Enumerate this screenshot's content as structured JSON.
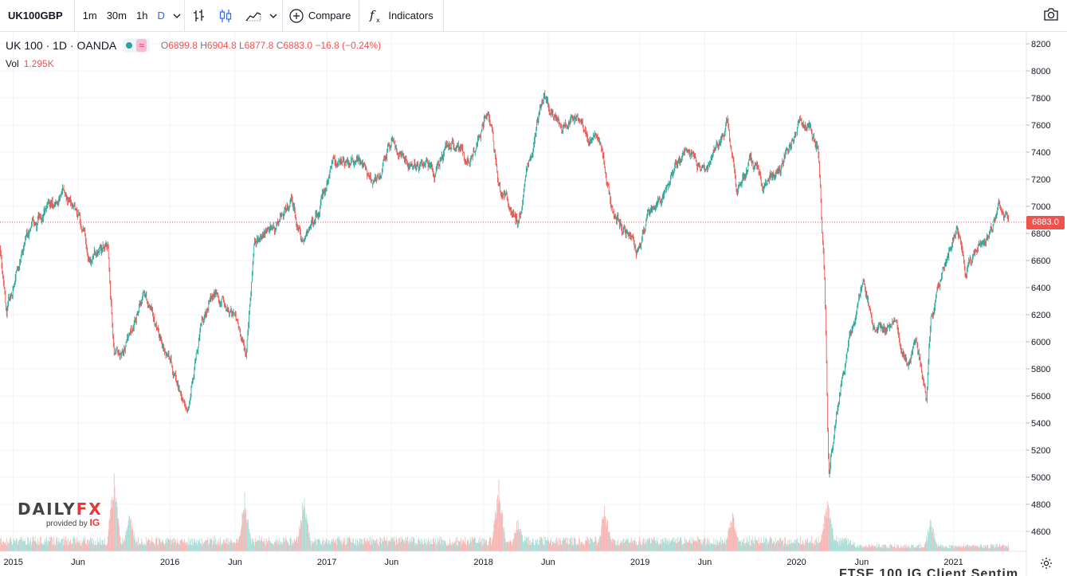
{
  "toolbar": {
    "symbol": "UK100GBP",
    "timeframes": [
      "1m",
      "30m",
      "1h",
      "D"
    ],
    "active_timeframe": "D",
    "compare_label": "Compare",
    "indicators_label": "Indicators"
  },
  "legend": {
    "title": "UK 100 · 1D · OANDA",
    "wave_symbol": "≈",
    "open_label": "O",
    "open": "6899.8",
    "high_label": "H",
    "high": "6904.8",
    "low_label": "L",
    "low": "6877.8",
    "close_label": "C",
    "close": "6883.0",
    "change": "−16.8 (−0.24%)",
    "vol_label": "Vol",
    "vol_value": "1.295K"
  },
  "logo": {
    "word_a": "DAILY",
    "word_b": "FX",
    "provided_by": "provided by",
    "ig": "IG"
  },
  "bottom_text": "FTSE 100 IG Client Sentim",
  "colors": {
    "up": "#26a69a",
    "down": "#ef5350",
    "volume_up": "#a6dcd6",
    "volume_down": "#f7b3b1",
    "accent": "#2962ff"
  },
  "chart_data": {
    "type": "candlestick",
    "symbol": "UK 100",
    "interval": "1D",
    "ylim": [
      4450,
      8250
    ],
    "y_ticks": [
      4600,
      4800,
      5000,
      5200,
      5400,
      5600,
      5800,
      6000,
      6200,
      6400,
      6600,
      6800,
      7000,
      7200,
      7400,
      7600,
      7800,
      8000,
      8200
    ],
    "x_ticks": [
      {
        "label": "2015",
        "date": "2015-01-01"
      },
      {
        "label": "Jun",
        "date": "2015-06-01"
      },
      {
        "label": "2016",
        "date": "2016-01-01"
      },
      {
        "label": "Jun",
        "date": "2016-06-01"
      },
      {
        "label": "2017",
        "date": "2017-01-01"
      },
      {
        "label": "Jun",
        "date": "2017-06-01"
      },
      {
        "label": "2018",
        "date": "2018-01-01"
      },
      {
        "label": "Jun",
        "date": "2018-06-01"
      },
      {
        "label": "2019",
        "date": "2019-01-01"
      },
      {
        "label": "Jun",
        "date": "2019-06-01"
      },
      {
        "label": "2020",
        "date": "2020-01-01"
      },
      {
        "label": "Jun",
        "date": "2020-06-01"
      },
      {
        "label": "2021",
        "date": "2021-01-01"
      }
    ],
    "x_range": [
      "2014-12-01",
      "2021-05-10"
    ],
    "last_price": 6883.0,
    "last_price_label": "6883.0",
    "close_path": [
      {
        "date": "2014-12-01",
        "close": 6700
      },
      {
        "date": "2014-12-16",
        "close": 6200
      },
      {
        "date": "2015-01-05",
        "close": 6500
      },
      {
        "date": "2015-02-20",
        "close": 6900
      },
      {
        "date": "2015-04-27",
        "close": 7100
      },
      {
        "date": "2015-06-01",
        "close": 6950
      },
      {
        "date": "2015-07-01",
        "close": 6600
      },
      {
        "date": "2015-08-10",
        "close": 6700
      },
      {
        "date": "2015-08-24",
        "close": 5900
      },
      {
        "date": "2015-09-29",
        "close": 6000
      },
      {
        "date": "2015-11-02",
        "close": 6400
      },
      {
        "date": "2015-12-14",
        "close": 5950
      },
      {
        "date": "2016-01-20",
        "close": 5700
      },
      {
        "date": "2016-02-11",
        "close": 5550
      },
      {
        "date": "2016-03-15",
        "close": 6150
      },
      {
        "date": "2016-04-20",
        "close": 6400
      },
      {
        "date": "2016-06-01",
        "close": 6200
      },
      {
        "date": "2016-06-27",
        "close": 5900
      },
      {
        "date": "2016-07-15",
        "close": 6700
      },
      {
        "date": "2016-09-01",
        "close": 6850
      },
      {
        "date": "2016-10-11",
        "close": 7050
      },
      {
        "date": "2016-11-09",
        "close": 6700
      },
      {
        "date": "2016-12-15",
        "close": 7000
      },
      {
        "date": "2017-01-13",
        "close": 7300
      },
      {
        "date": "2017-03-01",
        "close": 7350
      },
      {
        "date": "2017-04-18",
        "close": 7150
      },
      {
        "date": "2017-06-01",
        "close": 7500
      },
      {
        "date": "2017-07-01",
        "close": 7350
      },
      {
        "date": "2017-09-15",
        "close": 7250
      },
      {
        "date": "2017-10-20",
        "close": 7500
      },
      {
        "date": "2017-12-01",
        "close": 7350
      },
      {
        "date": "2018-01-12",
        "close": 7750
      },
      {
        "date": "2018-02-09",
        "close": 7100
      },
      {
        "date": "2018-03-23",
        "close": 6900
      },
      {
        "date": "2018-04-20",
        "close": 7350
      },
      {
        "date": "2018-05-22",
        "close": 7850
      },
      {
        "date": "2018-07-02",
        "close": 7550
      },
      {
        "date": "2018-08-01",
        "close": 7700
      },
      {
        "date": "2018-10-01",
        "close": 7450
      },
      {
        "date": "2018-10-26",
        "close": 7000
      },
      {
        "date": "2018-12-27",
        "close": 6650
      },
      {
        "date": "2019-01-15",
        "close": 6900
      },
      {
        "date": "2019-03-01",
        "close": 7150
      },
      {
        "date": "2019-04-23",
        "close": 7450
      },
      {
        "date": "2019-06-01",
        "close": 7250
      },
      {
        "date": "2019-07-25",
        "close": 7650
      },
      {
        "date": "2019-08-15",
        "close": 7100
      },
      {
        "date": "2019-09-15",
        "close": 7350
      },
      {
        "date": "2019-10-14",
        "close": 7150
      },
      {
        "date": "2019-12-01",
        "close": 7300
      },
      {
        "date": "2020-01-10",
        "close": 7650
      },
      {
        "date": "2020-02-20",
        "close": 7450
      },
      {
        "date": "2020-03-06",
        "close": 6500
      },
      {
        "date": "2020-03-16",
        "close": 5000
      },
      {
        "date": "2020-03-23",
        "close": 5200
      },
      {
        "date": "2020-04-15",
        "close": 5750
      },
      {
        "date": "2020-06-05",
        "close": 6450
      },
      {
        "date": "2020-06-26",
        "close": 6150
      },
      {
        "date": "2020-08-15",
        "close": 6100
      },
      {
        "date": "2020-09-21",
        "close": 5850
      },
      {
        "date": "2020-10-05",
        "close": 6000
      },
      {
        "date": "2020-10-30",
        "close": 5600
      },
      {
        "date": "2020-11-09",
        "close": 6200
      },
      {
        "date": "2020-12-01",
        "close": 6450
      },
      {
        "date": "2021-01-08",
        "close": 6850
      },
      {
        "date": "2021-01-29",
        "close": 6500
      },
      {
        "date": "2021-02-25",
        "close": 6700
      },
      {
        "date": "2021-03-15",
        "close": 6750
      },
      {
        "date": "2021-04-16",
        "close": 6950
      },
      {
        "date": "2021-05-04",
        "close": 6883
      }
    ],
    "volume_ylim": [
      0,
      8000
    ],
    "volume_baseline": 600,
    "volume_spikes": [
      {
        "date": "2015-08-24",
        "volume": 4900
      },
      {
        "date": "2015-09-30",
        "volume": 2400
      },
      {
        "date": "2016-06-24",
        "volume": 3600
      },
      {
        "date": "2016-11-09",
        "volume": 3700
      },
      {
        "date": "2018-02-06",
        "volume": 4400
      },
      {
        "date": "2018-03-23",
        "volume": 2100
      },
      {
        "date": "2018-10-11",
        "volume": 3000
      },
      {
        "date": "2019-08-05",
        "volume": 2700
      },
      {
        "date": "2020-03-12",
        "volume": 3300
      },
      {
        "date": "2020-03-16",
        "volume": 2800
      },
      {
        "date": "2020-11-09",
        "volume": 2000
      }
    ]
  }
}
